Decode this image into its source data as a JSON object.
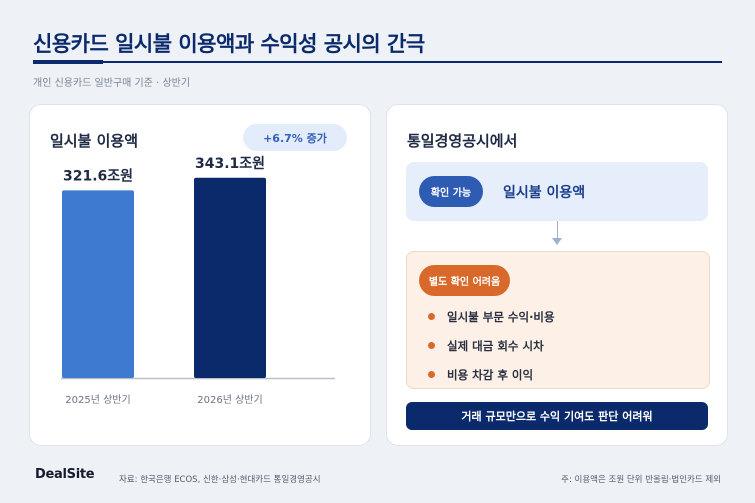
{
  "header": {
    "title": "신용카드 일시불 이용액과 수익성 공시의 간극",
    "subtitle": "개인 신용카드 일반구매 기준 · 상반기"
  },
  "left_panel": {
    "title": "일시불 이용액",
    "badge": "+6.7% 증가"
  },
  "chart_data": {
    "type": "bar",
    "categories": [
      "2025년 상반기",
      "2026년 상반기"
    ],
    "values": [
      321.6,
      343.1
    ],
    "value_labels": [
      "321.6조원",
      "343.1조원"
    ],
    "unit": "조원",
    "title": "일시불 이용액",
    "xlabel": "",
    "ylabel": "",
    "ylim": [
      0,
      365
    ],
    "grid": false,
    "colors": [
      "#3e7ad0",
      "#0b2a6b"
    ]
  },
  "right_panel": {
    "title": "통일경영공시에서",
    "confirm_pill": "확인 가능",
    "confirm_text": "일시불 이용액",
    "separate_pill": "별도 확인 어려움",
    "bullets": [
      "일시불 부문 수익·비용",
      "실제 대금 회수 시차",
      "비용 차감 후 이익"
    ],
    "banner": "거래 규모만으로 수익 기여도 판단 어려워"
  },
  "footer": {
    "logo": "DealSite",
    "source": "자료: 한국은행 ECOS, 신한·삼성·현대카드 통일경영공시",
    "note": "주: 이용액은 조원 단위 반올림·법인카드 제외"
  },
  "colors": {
    "primary_navy": "#0b2a6b",
    "bar_light": "#3e7ad0",
    "accent_orange": "#d9692a",
    "background": "#eef1f6"
  }
}
